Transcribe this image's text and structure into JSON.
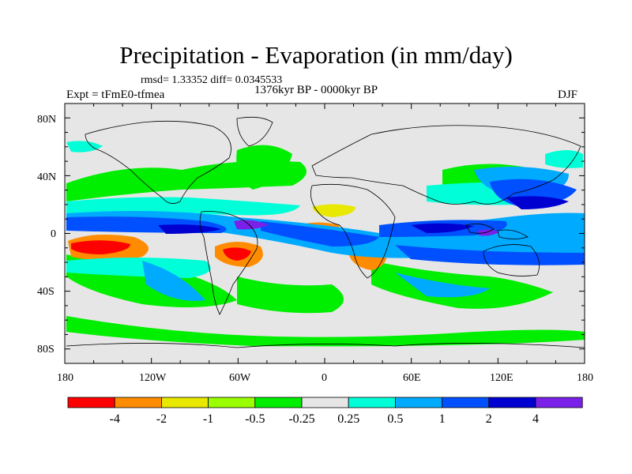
{
  "title": "Precipitation - Evaporation (in mm/day)",
  "stats_line": "rmsd= 1.33352 diff= 0.0345533",
  "period_line": "1376kyr BP - 0000kyr BP",
  "experiment": "Expt = tFmE0-tfmea",
  "season": "DJF",
  "lat_labels": [
    "80N",
    "40N",
    "0",
    "40S",
    "80S"
  ],
  "lon_labels": [
    "180",
    "120W",
    "60W",
    "0",
    "60E",
    "120E",
    "180"
  ],
  "colorbar": {
    "colors": [
      "#ff0000",
      "#ff8c00",
      "#e8e800",
      "#9aff00",
      "#00ee00",
      "#e6e6e6",
      "#00ffd8",
      "#00aaff",
      "#0050ff",
      "#0000d0",
      "#7a20e8"
    ],
    "labels": [
      "-4",
      "-2",
      "-1",
      "-0.5",
      "-0.25",
      "0.25",
      "0.5",
      "1",
      "2",
      "4"
    ]
  },
  "colors": {
    "ocean_background": "#e6e6e6",
    "coast": "#000000"
  }
}
